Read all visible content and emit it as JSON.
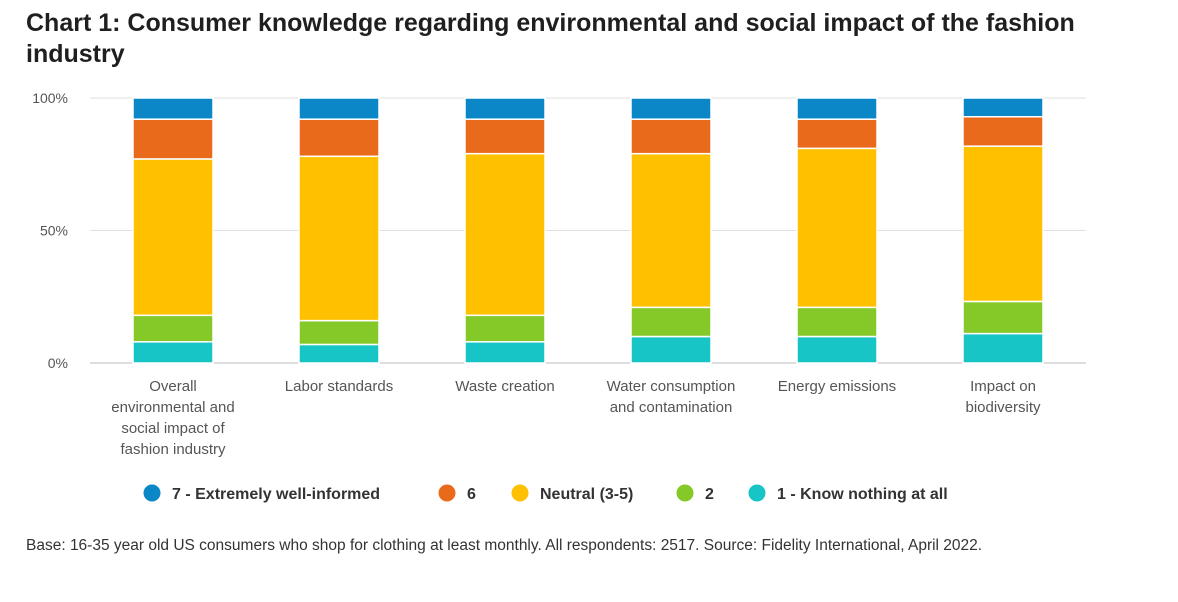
{
  "chart_data": {
    "type": "bar",
    "stacked": true,
    "percent": true,
    "title": "Chart 1: Consumer knowledge regarding environmental and social impact of the fashion industry",
    "y_ticks": [
      "0%",
      "50%",
      "100%"
    ],
    "ylim": [
      0,
      100
    ],
    "grid": true,
    "legend_position": "bottom",
    "categories": [
      [
        "Overall",
        "environmental and",
        "social impact of",
        "fashion industry"
      ],
      [
        "Labor standards"
      ],
      [
        "Waste creation"
      ],
      [
        "Water consumption",
        "and contamination"
      ],
      [
        "Energy emissions"
      ],
      [
        "Impact on",
        "biodiversity"
      ]
    ],
    "series": [
      {
        "name": "1 - Know nothing at all",
        "color": "#17c4c6",
        "values": [
          8,
          7,
          8,
          10,
          10,
          11
        ]
      },
      {
        "name": "2",
        "color": "#84c928",
        "values": [
          10,
          9,
          10,
          11,
          11,
          12
        ]
      },
      {
        "name": "Neutral (3-5)",
        "color": "#ffc000",
        "values": [
          59,
          62,
          61,
          58,
          60,
          58
        ]
      },
      {
        "name": "6",
        "color": "#ea6a1c",
        "values": [
          15,
          14,
          13,
          13,
          11,
          11
        ]
      },
      {
        "name": "7 - Extremely well-informed",
        "color": "#0b86c6",
        "values": [
          8,
          8,
          8,
          8,
          8,
          7
        ]
      }
    ],
    "legend_order": [
      4,
      3,
      2,
      1,
      0
    ],
    "note": "Base: 16-35 year old US consumers who shop for clothing at least monthly. All respondents: 2517. Source: Fidelity International, April 2022."
  }
}
